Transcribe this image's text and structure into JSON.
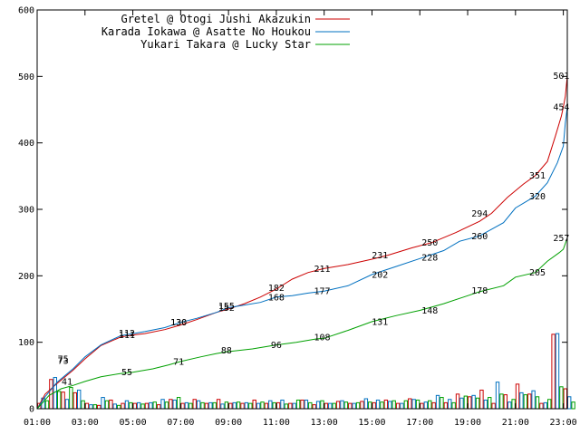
{
  "chart_data": {
    "type": "line",
    "title": "",
    "xlabel": "",
    "ylabel": "",
    "ylim": [
      0,
      600
    ],
    "yticks": [
      0,
      100,
      200,
      300,
      400,
      500,
      600
    ],
    "xlim": [
      "01:00",
      "23:10"
    ],
    "xticks": [
      "01:00",
      "03:00",
      "05:00",
      "07:00",
      "09:00",
      "11:00",
      "13:00",
      "15:00",
      "17:00",
      "19:00",
      "21:00",
      "23:00"
    ],
    "grid": false,
    "legend_position": "top-right",
    "colors": {
      "gretel": "#cc0000",
      "karada": "#0070c0",
      "yukari": "#00a000"
    },
    "series": [
      {
        "name": "Gretel @ Otogi Jushi Akazukin",
        "color": "#cc0000",
        "points": [
          [
            "01:00",
            0
          ],
          [
            "01:20",
            22
          ],
          [
            "01:50",
            38
          ],
          [
            "02:30",
            58
          ],
          [
            "03:00",
            75
          ],
          [
            "03:40",
            95
          ],
          [
            "04:30",
            108
          ],
          [
            "05:00",
            111
          ],
          [
            "05:30",
            113
          ],
          [
            "06:20",
            119
          ],
          [
            "07:00",
            126
          ],
          [
            "07:40",
            134
          ],
          [
            "08:30",
            145
          ],
          [
            "09:00",
            150
          ],
          [
            "09:40",
            158
          ],
          [
            "10:20",
            168
          ],
          [
            "11:00",
            180
          ],
          [
            "11:40",
            195
          ],
          [
            "12:20",
            205
          ],
          [
            "13:00",
            211
          ],
          [
            "14:00",
            217
          ],
          [
            "15:00",
            225
          ],
          [
            "15:40",
            231
          ],
          [
            "16:40",
            242
          ],
          [
            "17:30",
            250
          ],
          [
            "18:30",
            265
          ],
          [
            "19:30",
            282
          ],
          [
            "20:00",
            294
          ],
          [
            "20:40",
            318
          ],
          [
            "21:20",
            338
          ],
          [
            "21:50",
            351
          ],
          [
            "22:20",
            372
          ],
          [
            "22:40",
            410
          ],
          [
            "22:55",
            440
          ],
          [
            "23:00",
            454
          ],
          [
            "23:05",
            470
          ],
          [
            "23:10",
            501
          ]
        ],
        "labels": [
          [
            "02:05",
            75,
            "75"
          ],
          [
            "04:45",
            111,
            "111"
          ],
          [
            "06:55",
            130,
            "130"
          ],
          [
            "08:55",
            155,
            "155"
          ],
          [
            "11:00",
            182,
            "182"
          ],
          [
            "12:55",
            211,
            "211"
          ],
          [
            "15:20",
            231,
            "231"
          ],
          [
            "17:25",
            250,
            "250"
          ],
          [
            "19:30",
            294,
            "294"
          ],
          [
            "21:55",
            351,
            "351"
          ],
          [
            "22:55",
            454,
            "454"
          ],
          [
            "22:55",
            501,
            "501"
          ]
        ]
      },
      {
        "name": "Karada Iokawa @ Asatte No Houkou",
        "color": "#0070c0",
        "points": [
          [
            "01:00",
            0
          ],
          [
            "01:20",
            18
          ],
          [
            "01:50",
            40
          ],
          [
            "02:30",
            60
          ],
          [
            "03:00",
            78
          ],
          [
            "03:40",
            96
          ],
          [
            "04:30",
            110
          ],
          [
            "05:00",
            113
          ],
          [
            "05:30",
            116
          ],
          [
            "06:20",
            122
          ],
          [
            "07:00",
            130
          ],
          [
            "07:40",
            136
          ],
          [
            "08:30",
            145
          ],
          [
            "09:00",
            152
          ],
          [
            "09:40",
            156
          ],
          [
            "10:20",
            160
          ],
          [
            "11:00",
            168
          ],
          [
            "11:40",
            170
          ],
          [
            "12:20",
            174
          ],
          [
            "13:00",
            177
          ],
          [
            "14:00",
            185
          ],
          [
            "15:00",
            202
          ],
          [
            "16:00",
            214
          ],
          [
            "17:00",
            226
          ],
          [
            "18:00",
            238
          ],
          [
            "18:40",
            252
          ],
          [
            "19:30",
            260
          ],
          [
            "20:30",
            280
          ],
          [
            "21:00",
            302
          ],
          [
            "21:50",
            320
          ],
          [
            "22:20",
            340
          ],
          [
            "22:45",
            370
          ],
          [
            "23:00",
            395
          ],
          [
            "23:05",
            430
          ],
          [
            "23:10",
            454
          ]
        ],
        "labels": [
          [
            "02:05",
            72,
            "73"
          ],
          [
            "04:45",
            114,
            "112"
          ],
          [
            "06:55",
            130,
            "130"
          ],
          [
            "08:55",
            152,
            "152"
          ],
          [
            "11:00",
            168,
            "168"
          ],
          [
            "12:55",
            177,
            "177"
          ],
          [
            "15:20",
            202,
            "202"
          ],
          [
            "17:25",
            228,
            "228"
          ],
          [
            "19:30",
            260,
            "260"
          ],
          [
            "21:55",
            320,
            "320"
          ]
        ]
      },
      {
        "name": "Yukari Takara @ Lucky Star",
        "color": "#00a000",
        "points": [
          [
            "01:00",
            0
          ],
          [
            "01:30",
            20
          ],
          [
            "02:00",
            30
          ],
          [
            "02:30",
            35
          ],
          [
            "03:00",
            41
          ],
          [
            "03:40",
            48
          ],
          [
            "04:30",
            53
          ],
          [
            "05:00",
            55
          ],
          [
            "05:50",
            60
          ],
          [
            "06:30",
            66
          ],
          [
            "07:00",
            71
          ],
          [
            "07:50",
            78
          ],
          [
            "08:30",
            83
          ],
          [
            "09:00",
            86
          ],
          [
            "10:00",
            90
          ],
          [
            "11:00",
            96
          ],
          [
            "11:50",
            100
          ],
          [
            "12:40",
            105
          ],
          [
            "13:00",
            106
          ],
          [
            "14:00",
            118
          ],
          [
            "15:00",
            131
          ],
          [
            "16:00",
            140
          ],
          [
            "17:00",
            148
          ],
          [
            "18:00",
            158
          ],
          [
            "19:00",
            170
          ],
          [
            "19:30",
            176
          ],
          [
            "20:30",
            185
          ],
          [
            "21:00",
            198
          ],
          [
            "21:50",
            205
          ],
          [
            "22:20",
            222
          ],
          [
            "22:50",
            235
          ],
          [
            "23:00",
            240
          ],
          [
            "23:10",
            257
          ]
        ],
        "labels": [
          [
            "02:15",
            41,
            "41"
          ],
          [
            "04:45",
            55,
            "55"
          ],
          [
            "06:55",
            71,
            "71"
          ],
          [
            "08:55",
            88,
            "88"
          ],
          [
            "11:00",
            96,
            "96"
          ],
          [
            "12:55",
            108,
            "108"
          ],
          [
            "15:20",
            131,
            "131"
          ],
          [
            "17:25",
            148,
            "148"
          ],
          [
            "19:30",
            178,
            "178"
          ],
          [
            "21:55",
            205,
            "205"
          ],
          [
            "22:55",
            257,
            "257"
          ]
        ]
      }
    ],
    "bars": {
      "bucket_minutes": 30,
      "start": "01:00",
      "gretel": [
        8,
        44,
        25,
        24,
        8,
        5,
        13,
        8,
        8,
        8,
        6,
        14,
        8,
        14,
        8,
        14,
        8,
        8,
        13,
        8,
        9,
        8,
        13,
        6,
        8,
        11,
        8,
        11,
        9,
        13,
        8,
        15,
        8,
        9,
        9,
        22,
        18,
        28,
        8,
        21,
        37,
        22,
        8,
        112,
        30
      ],
      "karada": [
        16,
        47,
        14,
        28,
        6,
        17,
        7,
        12,
        9,
        9,
        14,
        13,
        9,
        12,
        9,
        7,
        9,
        9,
        8,
        12,
        13,
        8,
        13,
        11,
        8,
        12,
        8,
        15,
        13,
        11,
        8,
        14,
        10,
        20,
        14,
        16,
        20,
        13,
        40,
        10,
        24,
        27,
        9,
        113,
        18
      ],
      "yukari": [
        12,
        26,
        32,
        12,
        6,
        12,
        5,
        9,
        7,
        10,
        10,
        17,
        8,
        9,
        9,
        10,
        10,
        8,
        10,
        9,
        7,
        13,
        9,
        12,
        8,
        10,
        9,
        10,
        10,
        12,
        12,
        13,
        12,
        17,
        9,
        19,
        16,
        17,
        22,
        14,
        21,
        18,
        14,
        33,
        10
      ]
    }
  }
}
